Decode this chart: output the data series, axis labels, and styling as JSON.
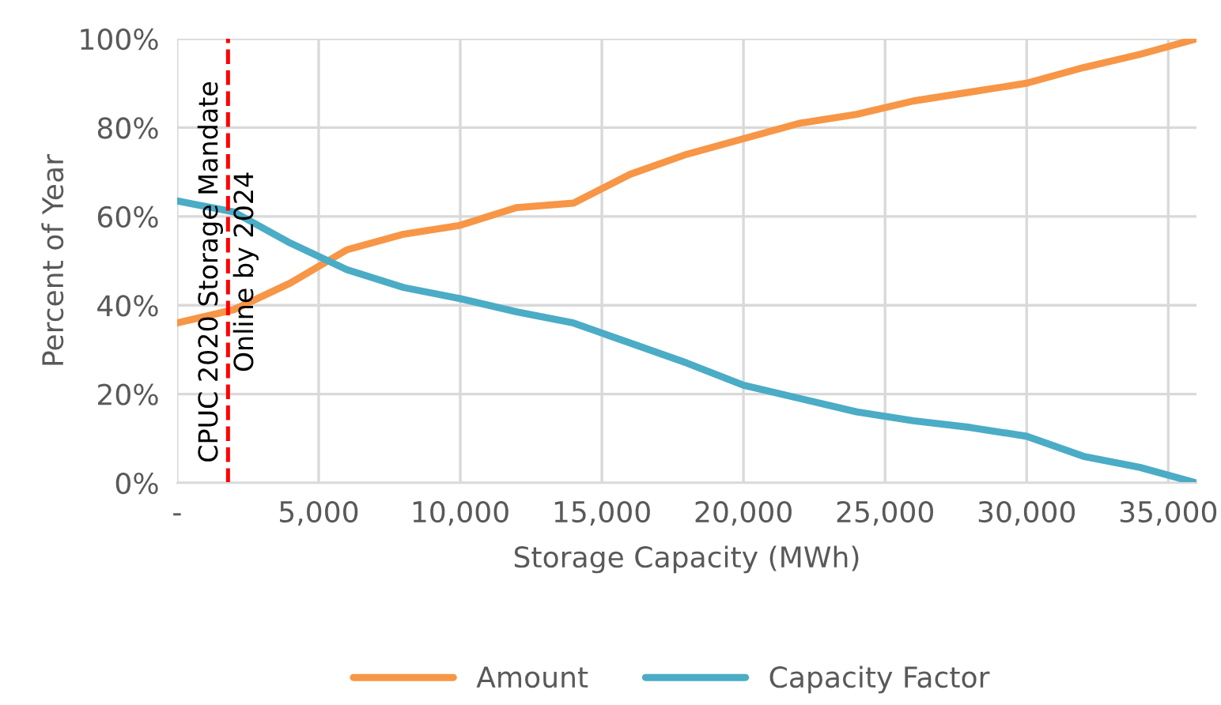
{
  "chart_data": {
    "type": "line",
    "xlabel": "Storage Capacity (MWh)",
    "ylabel": "Percent of Year",
    "x": [
      0,
      2000,
      4000,
      6000,
      8000,
      10000,
      12000,
      14000,
      16000,
      18000,
      20000,
      22000,
      24000,
      26000,
      28000,
      30000,
      32000,
      34000,
      36000
    ],
    "series": [
      {
        "name": "Amount",
        "color": "#f79646",
        "values": [
          36,
          39,
          45,
          52.5,
          56,
          58,
          62,
          63,
          69.5,
          74,
          77.5,
          81,
          83,
          86,
          88,
          90,
          93.5,
          96.5,
          100
        ]
      },
      {
        "name": "Capacity Factor",
        "color": "#4bacc6",
        "values": [
          63.5,
          61,
          54,
          48,
          44,
          41.5,
          38.5,
          36,
          31.5,
          27,
          22,
          19,
          16,
          14,
          12.5,
          10.5,
          6,
          3.5,
          0
        ]
      }
    ],
    "xlim": [
      0,
      36000
    ],
    "xticks": [
      {
        "value": 0,
        "label": "-"
      },
      {
        "value": 5000,
        "label": "5,000"
      },
      {
        "value": 10000,
        "label": "10,000"
      },
      {
        "value": 15000,
        "label": "15,000"
      },
      {
        "value": 20000,
        "label": "20,000"
      },
      {
        "value": 25000,
        "label": "25,000"
      },
      {
        "value": 30000,
        "label": "30,000"
      },
      {
        "value": 35000,
        "label": "35,000"
      }
    ],
    "ylim": [
      0,
      100
    ],
    "yticks": [
      {
        "value": 0,
        "label": "0%"
      },
      {
        "value": 20,
        "label": "20%"
      },
      {
        "value": 40,
        "label": "40%"
      },
      {
        "value": 60,
        "label": "60%"
      },
      {
        "value": 80,
        "label": "80%"
      },
      {
        "value": 100,
        "label": "100%"
      }
    ],
    "ref_lines": [
      {
        "axis": "x",
        "value": 1800,
        "label": "CPUC 2020 Storage Mandate\nOnline by 2024",
        "color": "#ff0000",
        "line_style": "dashed"
      }
    ],
    "grid": true,
    "legend": "bottom",
    "marker": "none",
    "line_style": "solid"
  }
}
